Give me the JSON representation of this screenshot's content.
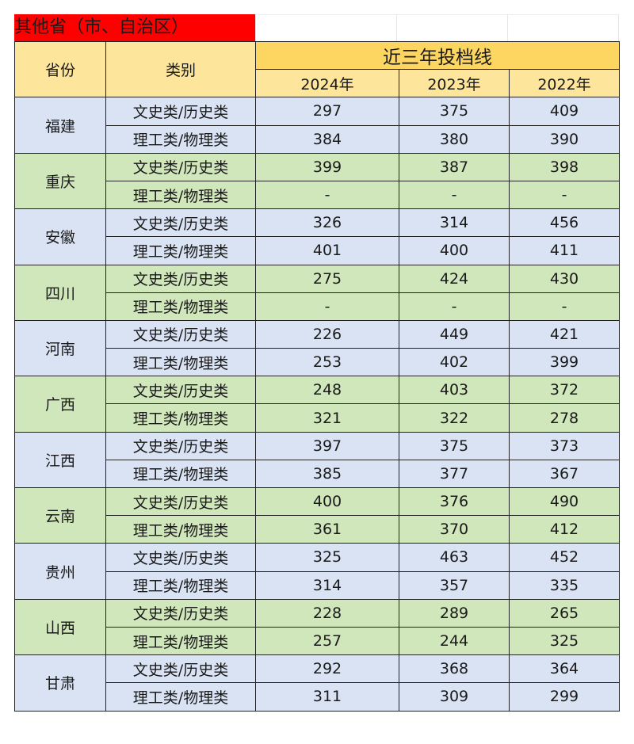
{
  "title": "其他省（市、自治区）",
  "header": {
    "province": "省份",
    "category": "类别",
    "group": "近三年投档线",
    "years": [
      "2024年",
      "2023年",
      "2022年"
    ]
  },
  "colors": {
    "title_bg": "#ff0000",
    "header_bg": "#fde59b",
    "row_blue": "#d9e3f4",
    "row_green": "#d0e6bb"
  },
  "rows": [
    {
      "province": "福建",
      "items": [
        {
          "category": "文史类/历史类",
          "values": [
            "297",
            "375",
            "409"
          ]
        },
        {
          "category": "理工类/物理类",
          "values": [
            "384",
            "380",
            "390"
          ]
        }
      ]
    },
    {
      "province": "重庆",
      "items": [
        {
          "category": "文史类/历史类",
          "values": [
            "399",
            "387",
            "398"
          ]
        },
        {
          "category": "理工类/物理类",
          "values": [
            "-",
            "-",
            "-"
          ]
        }
      ]
    },
    {
      "province": "安徽",
      "items": [
        {
          "category": "文史类/历史类",
          "values": [
            "326",
            "314",
            "456"
          ]
        },
        {
          "category": "理工类/物理类",
          "values": [
            "401",
            "400",
            "411"
          ]
        }
      ]
    },
    {
      "province": "四川",
      "items": [
        {
          "category": "文史类/历史类",
          "values": [
            "275",
            "424",
            "430"
          ]
        },
        {
          "category": "理工类/物理类",
          "values": [
            "-",
            "-",
            "-"
          ]
        }
      ]
    },
    {
      "province": "河南",
      "items": [
        {
          "category": "文史类/历史类",
          "values": [
            "226",
            "449",
            "421"
          ]
        },
        {
          "category": "理工类/物理类",
          "values": [
            "253",
            "402",
            "399"
          ]
        }
      ]
    },
    {
      "province": "广西",
      "items": [
        {
          "category": "文史类/历史类",
          "values": [
            "248",
            "403",
            "372"
          ]
        },
        {
          "category": "理工类/物理类",
          "values": [
            "321",
            "322",
            "278"
          ]
        }
      ]
    },
    {
      "province": "江西",
      "items": [
        {
          "category": "文史类/历史类",
          "values": [
            "397",
            "375",
            "373"
          ]
        },
        {
          "category": "理工类/物理类",
          "values": [
            "385",
            "377",
            "367"
          ]
        }
      ]
    },
    {
      "province": "云南",
      "items": [
        {
          "category": "文史类/历史类",
          "values": [
            "400",
            "376",
            "490"
          ]
        },
        {
          "category": "理工类/物理类",
          "values": [
            "361",
            "370",
            "412"
          ]
        }
      ]
    },
    {
      "province": "贵州",
      "items": [
        {
          "category": "文史类/历史类",
          "values": [
            "325",
            "463",
            "452"
          ]
        },
        {
          "category": "理工类/物理类",
          "values": [
            "314",
            "357",
            "335"
          ]
        }
      ]
    },
    {
      "province": "山西",
      "items": [
        {
          "category": "文史类/历史类",
          "values": [
            "228",
            "289",
            "265"
          ]
        },
        {
          "category": "理工类/物理类",
          "values": [
            "257",
            "244",
            "325"
          ]
        }
      ]
    },
    {
      "province": "甘肃",
      "items": [
        {
          "category": "文史类/历史类",
          "values": [
            "292",
            "368",
            "364"
          ]
        },
        {
          "category": "理工类/物理类",
          "values": [
            "311",
            "309",
            "299"
          ]
        }
      ]
    }
  ]
}
